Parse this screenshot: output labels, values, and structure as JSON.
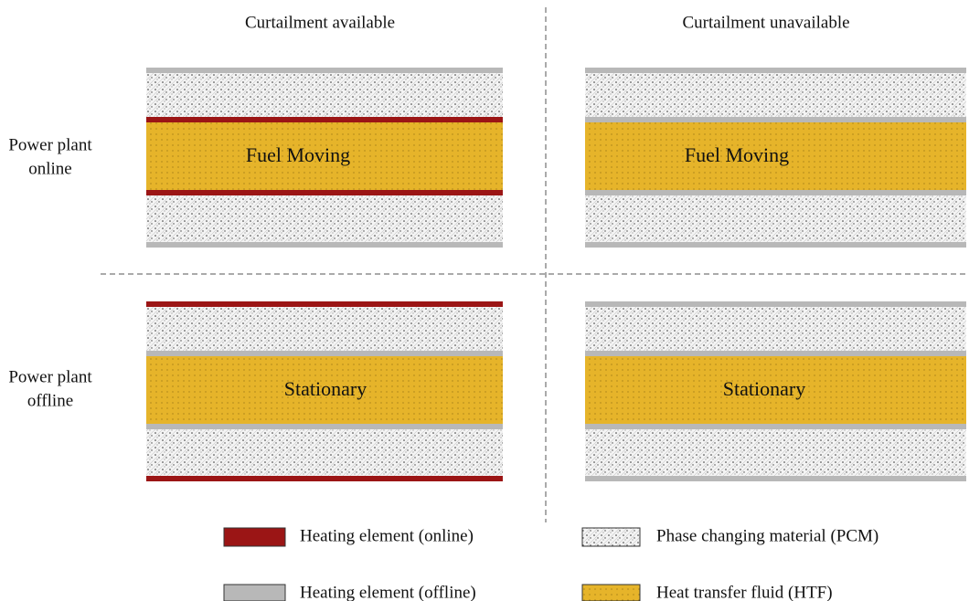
{
  "columns": [
    "Curtailment available",
    "Curtailment unavailable"
  ],
  "rows": [
    {
      "label": [
        "Power plant",
        "online"
      ]
    },
    {
      "label": [
        "Power plant",
        "offline"
      ]
    }
  ],
  "panels": [
    {
      "label": "Fuel Moving"
    },
    {
      "label": "Fuel Moving"
    },
    {
      "label": "Stationary"
    },
    {
      "label": "Stationary"
    }
  ],
  "legend": [
    "Heating element (online)",
    "Heating element (offline)",
    "Phase changing material (PCM)",
    "Heat transfer fluid (HTF)"
  ]
}
